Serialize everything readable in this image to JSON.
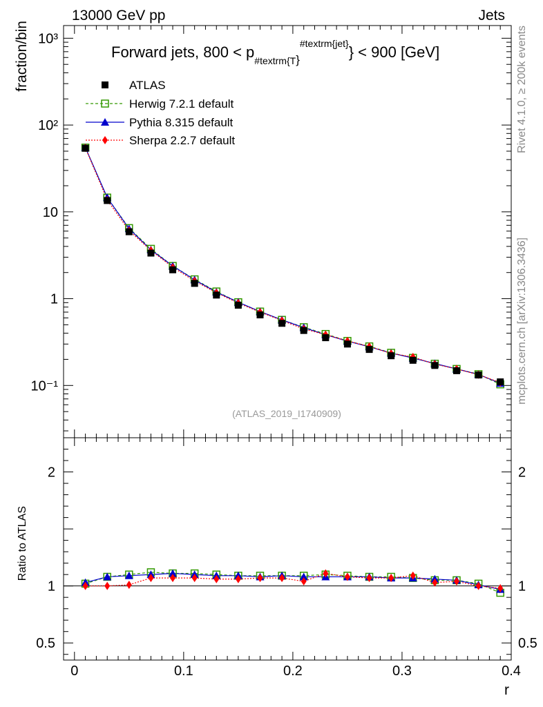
{
  "header": {
    "left": "13000 GeV pp",
    "right": "Jets"
  },
  "side_labels": {
    "rivet": "Rivet 4.1.0, ≥ 200k events",
    "mcplots": "mcplots.cern.ch [arXiv:1306.3436]"
  },
  "watermark": "(ATLAS_2019_I1740909)",
  "chart_data": {
    "type": "scatter",
    "title_parts": {
      "prefix": "Forward jets, 800 < p",
      "sub": "#textrm{T",
      "sub_close": "}",
      "sup": "#textrm{jet}",
      "suffix": "} < 900 [GeV]"
    },
    "xlabel": "r",
    "ylabel": "fraction/bin",
    "ratio_ylabel": "Ratio to ATLAS",
    "xlim": [
      -0.01,
      0.4
    ],
    "ylim": [
      0.025,
      1400
    ],
    "yscale": "log",
    "ratio_ylim": [
      0.35,
      2.3
    ],
    "x_ticks": [
      "0",
      "0.1",
      "0.2",
      "0.3",
      "0.4"
    ],
    "x_tick_values": [
      0,
      0.1,
      0.2,
      0.3,
      0.4
    ],
    "y_ticks": [
      "10⁻¹",
      "1",
      "10",
      "10²",
      "10³"
    ],
    "y_tick_values": [
      0.1,
      1,
      10,
      100,
      1000
    ],
    "ratio_ticks": [
      "0.5",
      "1",
      "2"
    ],
    "ratio_tick_values": [
      0.5,
      1,
      2
    ],
    "x": [
      0.01,
      0.03,
      0.05,
      0.07,
      0.09,
      0.11,
      0.13,
      0.15,
      0.17,
      0.19,
      0.21,
      0.23,
      0.25,
      0.27,
      0.29,
      0.31,
      0.33,
      0.35,
      0.37,
      0.39
    ],
    "series": [
      {
        "name": "ATLAS",
        "color": "#000000",
        "marker": "square-filled",
        "line": "none",
        "values": [
          54,
          13.5,
          5.9,
          3.35,
          2.15,
          1.5,
          1.1,
          0.84,
          0.65,
          0.52,
          0.43,
          0.355,
          0.3,
          0.26,
          0.22,
          0.195,
          0.17,
          0.148,
          0.132,
          0.11
        ],
        "ratio": [
          1,
          1,
          1,
          1,
          1,
          1,
          1,
          1,
          1,
          1,
          1,
          1,
          1,
          1,
          1,
          1,
          1,
          1,
          1,
          1
        ]
      },
      {
        "name": "Herwig 7.2.1 default",
        "color": "#339900",
        "marker": "square-open",
        "line": "dashed",
        "values": [
          55,
          14.6,
          6.5,
          3.75,
          2.38,
          1.67,
          1.21,
          0.91,
          0.71,
          0.57,
          0.469,
          0.392,
          0.326,
          0.282,
          0.238,
          0.208,
          0.178,
          0.155,
          0.135,
          0.103
        ],
        "ratio": [
          1.02,
          1.08,
          1.1,
          1.12,
          1.11,
          1.11,
          1.1,
          1.09,
          1.09,
          1.09,
          1.09,
          1.1,
          1.09,
          1.08,
          1.08,
          1.07,
          1.05,
          1.05,
          1.02,
          0.94
        ]
      },
      {
        "name": "Pythia 8.315 default",
        "color": "#0000cc",
        "marker": "triangle-filled",
        "line": "solid",
        "values": [
          55,
          14.6,
          6.4,
          3.65,
          2.38,
          1.65,
          1.19,
          0.91,
          0.71,
          0.57,
          0.465,
          0.384,
          0.324,
          0.279,
          0.236,
          0.207,
          0.179,
          0.155,
          0.134,
          0.106
        ],
        "ratio": [
          1.03,
          1.08,
          1.09,
          1.1,
          1.11,
          1.1,
          1.09,
          1.09,
          1.08,
          1.09,
          1.08,
          1.08,
          1.08,
          1.08,
          1.07,
          1.07,
          1.06,
          1.05,
          1.01,
          0.97
        ]
      },
      {
        "name": "Sherpa 2.2.7 default",
        "color": "#ff0000",
        "marker": "diamond-filled",
        "line": "dotted",
        "values": [
          54.5,
          13.7,
          6.1,
          3.6,
          2.3,
          1.6,
          1.17,
          0.89,
          0.7,
          0.56,
          0.448,
          0.385,
          0.326,
          0.281,
          0.234,
          0.213,
          0.176,
          0.155,
          0.133,
          0.108
        ],
        "ratio": [
          1.0,
          1.0,
          1.01,
          1.07,
          1.07,
          1.07,
          1.06,
          1.06,
          1.07,
          1.07,
          1.04,
          1.11,
          1.08,
          1.07,
          1.07,
          1.09,
          1.03,
          1.04,
          1.0,
          0.98
        ]
      }
    ]
  }
}
